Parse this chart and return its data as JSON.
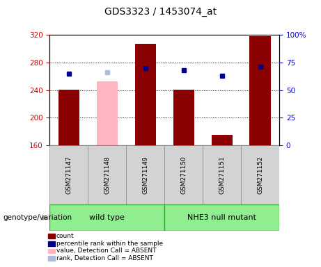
{
  "title": "GDS3323 / 1453074_at",
  "samples": [
    "GSM271147",
    "GSM271148",
    "GSM271149",
    "GSM271150",
    "GSM271151",
    "GSM271152"
  ],
  "bar_values": [
    241,
    null,
    307,
    241,
    175,
    318
  ],
  "bar_absent_values": [
    null,
    253,
    null,
    null,
    null,
    null
  ],
  "bar_color_present": "#8B0000",
  "bar_color_absent": "#FFB6C1",
  "dot_values": [
    65,
    66,
    70,
    68,
    63,
    71
  ],
  "dot_absent": [
    false,
    true,
    false,
    false,
    false,
    false
  ],
  "dot_color_present": "#00008B",
  "dot_color_absent": "#AABBDD",
  "ylim_left": [
    160,
    320
  ],
  "ylim_right": [
    0,
    100
  ],
  "yticks_left": [
    160,
    200,
    240,
    280,
    320
  ],
  "yticks_right": [
    0,
    25,
    50,
    75,
    100
  ],
  "ytick_labels_left": [
    "160",
    "200",
    "240",
    "280",
    "320"
  ],
  "ytick_labels_right": [
    "0",
    "25",
    "50",
    "75",
    "100%"
  ],
  "grid_values": [
    200,
    240,
    280
  ],
  "ylabel_left_color": "#CC0000",
  "ylabel_right_color": "#0000CC",
  "bar_bottom": 160,
  "bar_width": 0.55,
  "legend_items": [
    {
      "label": "count",
      "color": "#8B0000"
    },
    {
      "label": "percentile rank within the sample",
      "color": "#00008B"
    },
    {
      "label": "value, Detection Call = ABSENT",
      "color": "#FFB6C1"
    },
    {
      "label": "rank, Detection Call = ABSENT",
      "color": "#AABBDD"
    }
  ],
  "group_label_text": "genotype/variation",
  "wt_label": "wild type",
  "nhe_label": "NHE3 null mutant",
  "group_color": "#90EE90",
  "group_border_color": "#33AA33",
  "sample_box_color": "#D3D3D3",
  "sample_box_border": "#888888"
}
